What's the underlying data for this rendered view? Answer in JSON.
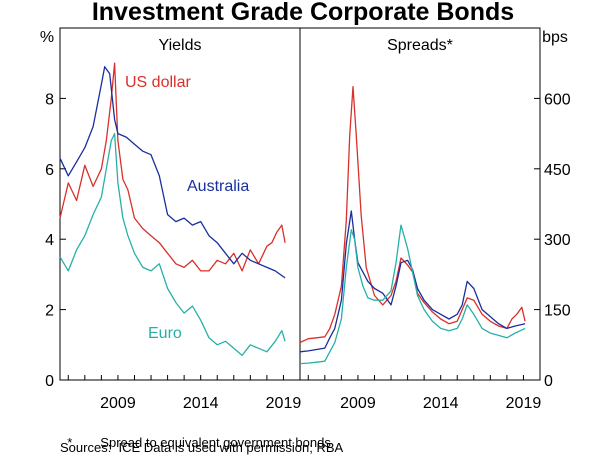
{
  "title": "Investment Grade Corporate Bonds",
  "footnote": {
    "marker": "*",
    "text": "Spread to equivalent government bonds"
  },
  "source": "Sources:  ICE Data is used with permission; RBA",
  "colors": {
    "us": "#d9302b",
    "australia": "#1a2f9e",
    "euro": "#27b0a8",
    "axis": "#000000"
  },
  "chart_data": [
    {
      "type": "line",
      "panel_title": "Yields",
      "ylabel": "%",
      "ylim": [
        0,
        10
      ],
      "yticks": [
        0,
        2,
        4,
        6,
        8
      ],
      "xlim": [
        2005.5,
        2020
      ],
      "xticks": [
        2009,
        2014,
        2019
      ],
      "series": [
        {
          "name": "US dollar",
          "x": [
            2005.5,
            2006,
            2006.5,
            2007,
            2007.5,
            2008,
            2008.3,
            2008.6,
            2008.8,
            2009,
            2009.3,
            2009.6,
            2010,
            2010.5,
            2011,
            2011.5,
            2012,
            2012.5,
            2013,
            2013.5,
            2014,
            2014.5,
            2015,
            2015.5,
            2016,
            2016.5,
            2017,
            2017.5,
            2018,
            2018.3,
            2018.6,
            2018.9,
            2019.1
          ],
          "values": [
            4.6,
            5.6,
            5.1,
            6.1,
            5.5,
            6.0,
            6.8,
            8.0,
            9.0,
            6.8,
            5.7,
            5.4,
            4.6,
            4.3,
            4.1,
            3.9,
            3.6,
            3.3,
            3.2,
            3.4,
            3.1,
            3.1,
            3.4,
            3.3,
            3.6,
            3.1,
            3.7,
            3.3,
            3.8,
            3.9,
            4.2,
            4.4,
            3.9
          ]
        },
        {
          "name": "Australia",
          "x": [
            2005.5,
            2006,
            2006.5,
            2007,
            2007.5,
            2008,
            2008.2,
            2008.5,
            2008.8,
            2009,
            2009.5,
            2010,
            2010.5,
            2011,
            2011.5,
            2012,
            2012.5,
            2013,
            2013.5,
            2014,
            2014.5,
            2015,
            2015.5,
            2016,
            2016.5,
            2017,
            2017.5,
            2018,
            2018.5,
            2019.1
          ],
          "values": [
            6.3,
            5.8,
            6.2,
            6.6,
            7.2,
            8.4,
            8.9,
            8.7,
            7.4,
            7.0,
            6.9,
            6.7,
            6.5,
            6.4,
            5.8,
            4.7,
            4.5,
            4.6,
            4.4,
            4.5,
            4.1,
            3.9,
            3.6,
            3.3,
            3.6,
            3.4,
            3.3,
            3.2,
            3.1,
            2.9
          ]
        },
        {
          "name": "Euro",
          "x": [
            2005.5,
            2006,
            2006.5,
            2007,
            2007.5,
            2008,
            2008.3,
            2008.6,
            2008.8,
            2009,
            2009.3,
            2009.6,
            2010,
            2010.5,
            2011,
            2011.5,
            2012,
            2012.5,
            2013,
            2013.5,
            2014,
            2014.5,
            2015,
            2015.5,
            2016,
            2016.5,
            2017,
            2017.5,
            2018,
            2018.5,
            2018.9,
            2019.1
          ],
          "values": [
            3.5,
            3.1,
            3.7,
            4.1,
            4.7,
            5.2,
            6.0,
            6.8,
            7.0,
            5.6,
            4.6,
            4.1,
            3.6,
            3.2,
            3.1,
            3.3,
            2.6,
            2.2,
            1.9,
            2.1,
            1.7,
            1.2,
            1.0,
            1.1,
            0.9,
            0.7,
            1.0,
            0.9,
            0.8,
            1.1,
            1.4,
            1.1
          ]
        }
      ]
    },
    {
      "type": "line",
      "panel_title": "Spreads*",
      "ylabel": "bps",
      "ylim": [
        0,
        750
      ],
      "yticks": [
        0,
        150,
        300,
        450,
        600
      ],
      "xlim": [
        2005.5,
        2020
      ],
      "xticks": [
        2009,
        2014,
        2019
      ],
      "series": [
        {
          "name": "US dollar",
          "x": [
            2005.5,
            2006,
            2006.5,
            2007,
            2007.3,
            2007.6,
            2008,
            2008.3,
            2008.5,
            2008.7,
            2008.9,
            2009.2,
            2009.5,
            2010,
            2010.5,
            2011,
            2011.3,
            2011.6,
            2012,
            2012.3,
            2012.6,
            2013,
            2013.5,
            2014,
            2014.5,
            2015,
            2015.3,
            2015.6,
            2016,
            2016.5,
            2017,
            2017.5,
            2018,
            2018.3,
            2018.6,
            2018.9,
            2019.1
          ],
          "values": [
            80,
            88,
            90,
            92,
            110,
            140,
            200,
            340,
            520,
            625,
            520,
            350,
            240,
            180,
            160,
            180,
            210,
            260,
            245,
            230,
            185,
            165,
            145,
            130,
            120,
            125,
            150,
            175,
            170,
            140,
            125,
            115,
            110,
            130,
            140,
            155,
            125
          ]
        },
        {
          "name": "Australia",
          "x": [
            2005.5,
            2006,
            2006.5,
            2007,
            2007.3,
            2007.6,
            2008,
            2008.3,
            2008.6,
            2008.8,
            2009,
            2009.3,
            2009.6,
            2010,
            2010.5,
            2011,
            2011.3,
            2011.6,
            2012,
            2012.3,
            2012.6,
            2013,
            2013.5,
            2014,
            2014.5,
            2015,
            2015.3,
            2015.6,
            2016,
            2016.5,
            2017,
            2017.5,
            2018,
            2018.5,
            2019.1
          ],
          "values": [
            60,
            62,
            65,
            68,
            90,
            110,
            170,
            290,
            360,
            300,
            250,
            230,
            210,
            195,
            185,
            160,
            200,
            250,
            255,
            235,
            195,
            170,
            150,
            140,
            130,
            140,
            160,
            210,
            195,
            150,
            135,
            120,
            110,
            115,
            120
          ]
        },
        {
          "name": "Euro",
          "x": [
            2005.5,
            2006,
            2006.5,
            2007,
            2007.3,
            2007.6,
            2008,
            2008.3,
            2008.6,
            2008.8,
            2009,
            2009.3,
            2009.6,
            2010,
            2010.5,
            2011,
            2011.3,
            2011.6,
            2012,
            2012.3,
            2012.6,
            2013,
            2013.5,
            2014,
            2014.5,
            2015,
            2015.3,
            2015.6,
            2016,
            2016.5,
            2017,
            2017.5,
            2018,
            2018.5,
            2019.1
          ],
          "values": [
            35,
            36,
            38,
            40,
            60,
            80,
            130,
            240,
            320,
            300,
            240,
            200,
            175,
            170,
            170,
            190,
            250,
            330,
            280,
            230,
            180,
            150,
            125,
            110,
            105,
            110,
            130,
            160,
            140,
            110,
            100,
            95,
            90,
            100,
            110
          ]
        }
      ]
    }
  ]
}
